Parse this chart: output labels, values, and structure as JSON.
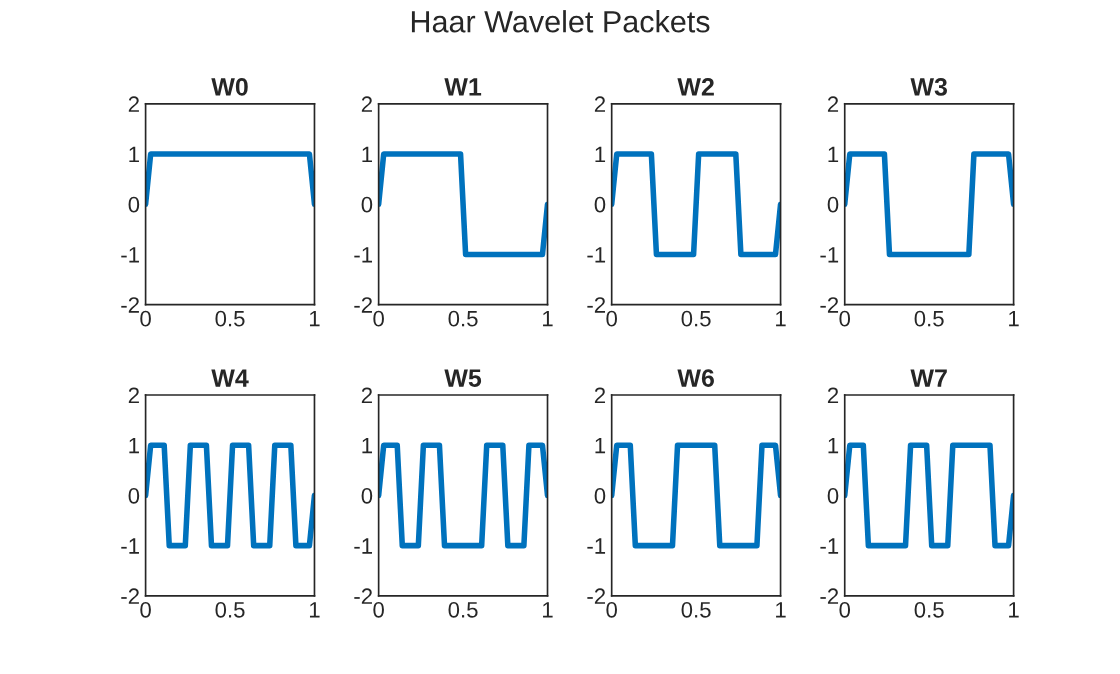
{
  "chart_data": [
    {
      "type": "line",
      "title": "W0",
      "annotations": [
        "Haar Wavelet Packets"
      ],
      "xlim": [
        0,
        1
      ],
      "ylim": [
        -2,
        2
      ],
      "xticks": [
        0,
        0.5,
        1
      ],
      "yticks": [
        -2,
        -1,
        0,
        1,
        2
      ],
      "grid": false,
      "legend": false,
      "series": [
        {
          "color": "#0072bd",
          "x": [
            0,
            0.03,
            0.97,
            1
          ],
          "values": [
            0,
            1,
            1,
            0
          ]
        }
      ]
    },
    {
      "type": "line",
      "title": "W1",
      "xlim": [
        0,
        1
      ],
      "ylim": [
        -2,
        2
      ],
      "xticks": [
        0,
        0.5,
        1
      ],
      "yticks": [
        -2,
        -1,
        0,
        1,
        2
      ],
      "grid": false,
      "legend": false,
      "series": [
        {
          "color": "#0072bd",
          "x": [
            0,
            0.03,
            0.485,
            0.515,
            0.97,
            1
          ],
          "values": [
            0,
            1,
            1,
            -1,
            -1,
            0
          ]
        }
      ]
    },
    {
      "type": "line",
      "title": "W2",
      "xlim": [
        0,
        1
      ],
      "ylim": [
        -2,
        2
      ],
      "xticks": [
        0,
        0.5,
        1
      ],
      "yticks": [
        -2,
        -1,
        0,
        1,
        2
      ],
      "grid": false,
      "legend": false,
      "series": [
        {
          "color": "#0072bd",
          "x": [
            0,
            0.03,
            0.235,
            0.265,
            0.485,
            0.515,
            0.735,
            0.765,
            0.97,
            1
          ],
          "values": [
            0,
            1,
            1,
            -1,
            -1,
            1,
            1,
            -1,
            -1,
            0
          ]
        }
      ]
    },
    {
      "type": "line",
      "title": "W3",
      "xlim": [
        0,
        1
      ],
      "ylim": [
        -2,
        2
      ],
      "xticks": [
        0,
        0.5,
        1
      ],
      "yticks": [
        -2,
        -1,
        0,
        1,
        2
      ],
      "grid": false,
      "legend": false,
      "series": [
        {
          "color": "#0072bd",
          "x": [
            0,
            0.03,
            0.235,
            0.265,
            0.735,
            0.765,
            0.97,
            1
          ],
          "values": [
            0,
            1,
            1,
            -1,
            -1,
            1,
            1,
            0
          ]
        }
      ]
    },
    {
      "type": "line",
      "title": "W4",
      "xlim": [
        0,
        1
      ],
      "ylim": [
        -2,
        2
      ],
      "xticks": [
        0,
        0.5,
        1
      ],
      "yticks": [
        -2,
        -1,
        0,
        1,
        2
      ],
      "grid": false,
      "legend": false,
      "series": [
        {
          "color": "#0072bd",
          "x": [
            0,
            0.03,
            0.11,
            0.14,
            0.235,
            0.265,
            0.36,
            0.39,
            0.485,
            0.515,
            0.61,
            0.64,
            0.735,
            0.765,
            0.86,
            0.89,
            0.97,
            1
          ],
          "values": [
            0,
            1,
            1,
            -1,
            -1,
            1,
            1,
            -1,
            -1,
            1,
            1,
            -1,
            -1,
            1,
            1,
            -1,
            -1,
            0
          ]
        }
      ]
    },
    {
      "type": "line",
      "title": "W5",
      "xlim": [
        0,
        1
      ],
      "ylim": [
        -2,
        2
      ],
      "xticks": [
        0,
        0.5,
        1
      ],
      "yticks": [
        -2,
        -1,
        0,
        1,
        2
      ],
      "grid": false,
      "legend": false,
      "series": [
        {
          "color": "#0072bd",
          "x": [
            0,
            0.03,
            0.11,
            0.14,
            0.235,
            0.265,
            0.36,
            0.39,
            0.61,
            0.64,
            0.735,
            0.765,
            0.86,
            0.89,
            0.97,
            1
          ],
          "values": [
            0,
            1,
            1,
            -1,
            -1,
            1,
            1,
            -1,
            -1,
            1,
            1,
            -1,
            -1,
            1,
            1,
            0
          ]
        }
      ]
    },
    {
      "type": "line",
      "title": "W6",
      "xlim": [
        0,
        1
      ],
      "ylim": [
        -2,
        2
      ],
      "xticks": [
        0,
        0.5,
        1
      ],
      "yticks": [
        -2,
        -1,
        0,
        1,
        2
      ],
      "grid": false,
      "legend": false,
      "series": [
        {
          "color": "#0072bd",
          "x": [
            0,
            0.03,
            0.11,
            0.14,
            0.36,
            0.39,
            0.61,
            0.64,
            0.86,
            0.89,
            0.97,
            1
          ],
          "values": [
            0,
            1,
            1,
            -1,
            -1,
            1,
            1,
            -1,
            -1,
            1,
            1,
            0
          ]
        }
      ]
    },
    {
      "type": "line",
      "title": "W7",
      "xlim": [
        0,
        1
      ],
      "ylim": [
        -2,
        2
      ],
      "xticks": [
        0,
        0.5,
        1
      ],
      "yticks": [
        -2,
        -1,
        0,
        1,
        2
      ],
      "grid": false,
      "legend": false,
      "series": [
        {
          "color": "#0072bd",
          "x": [
            0,
            0.03,
            0.11,
            0.14,
            0.36,
            0.39,
            0.485,
            0.515,
            0.61,
            0.64,
            0.86,
            0.89,
            0.97,
            1
          ],
          "values": [
            0,
            1,
            1,
            -1,
            -1,
            1,
            1,
            -1,
            -1,
            1,
            1,
            -1,
            -1,
            0
          ]
        }
      ]
    }
  ]
}
